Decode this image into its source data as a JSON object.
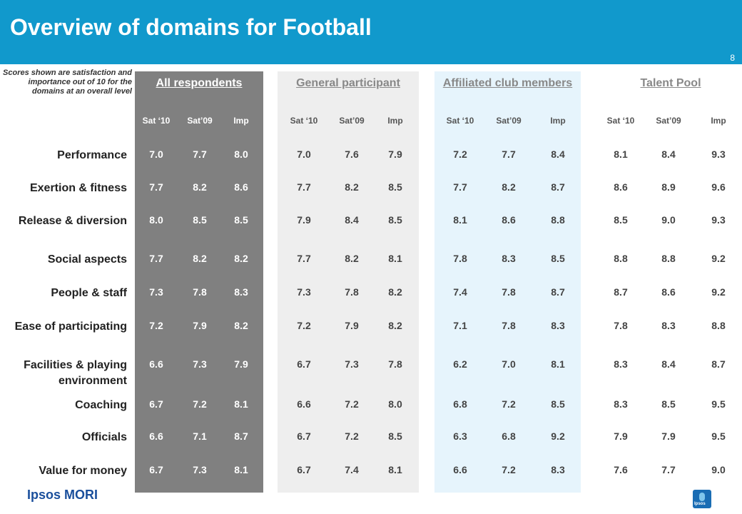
{
  "title": "Overview of domains for Football",
  "page_number": "8",
  "note": "Scores shown are satisfaction and importance out of 10 for the domains at an overall level",
  "logo": "Ipsos MORI",
  "badge_text": "Ipsos",
  "colors": {
    "header": "#1199cc",
    "all_panel": "#808080",
    "general_panel": "#eeeeee",
    "affiliated_panel": "#e6f4fc",
    "talent_panel": "#ffffff"
  },
  "chart_data": {
    "type": "table",
    "columns": [
      "Sat ‘10",
      "Sat’09",
      "Imp"
    ],
    "rows": [
      "Performance",
      "Exertion & fitness",
      "Release & diversion",
      "Social aspects",
      "People & staff",
      "Ease of participating",
      "Facilities & playing environment",
      "Coaching",
      "Officials",
      "Value for money"
    ],
    "groups": [
      {
        "name": "All respondents",
        "values": [
          [
            "7.0",
            "7.7",
            "8.0"
          ],
          [
            "7.7",
            "8.2",
            "8.6"
          ],
          [
            "8.0",
            "8.5",
            "8.5"
          ],
          [
            "7.7",
            "8.2",
            "8.2"
          ],
          [
            "7.3",
            "7.8",
            "8.3"
          ],
          [
            "7.2",
            "7.9",
            "8.2"
          ],
          [
            "6.6",
            "7.3",
            "7.9"
          ],
          [
            "6.7",
            "7.2",
            "8.1"
          ],
          [
            "6.6",
            "7.1",
            "8.7"
          ],
          [
            "6.7",
            "7.3",
            "8.1"
          ]
        ]
      },
      {
        "name": "General participant",
        "values": [
          [
            "7.0",
            "7.6",
            "7.9"
          ],
          [
            "7.7",
            "8.2",
            "8.5"
          ],
          [
            "7.9",
            "8.4",
            "8.5"
          ],
          [
            "7.7",
            "8.2",
            "8.1"
          ],
          [
            "7.3",
            "7.8",
            "8.2"
          ],
          [
            "7.2",
            "7.9",
            "8.2"
          ],
          [
            "6.7",
            "7.3",
            "7.8"
          ],
          [
            "6.6",
            "7.2",
            "8.0"
          ],
          [
            "6.7",
            "7.2",
            "8.5"
          ],
          [
            "6.7",
            "7.4",
            "8.1"
          ]
        ]
      },
      {
        "name": "Affiliated club members",
        "values": [
          [
            "7.2",
            "7.7",
            "8.4"
          ],
          [
            "7.7",
            "8.2",
            "8.7"
          ],
          [
            "8.1",
            "8.6",
            "8.8"
          ],
          [
            "7.8",
            "8.3",
            "8.5"
          ],
          [
            "7.4",
            "7.8",
            "8.7"
          ],
          [
            "7.1",
            "7.8",
            "8.3"
          ],
          [
            "6.2",
            "7.0",
            "8.1"
          ],
          [
            "6.8",
            "7.2",
            "8.5"
          ],
          [
            "6.3",
            "6.8",
            "9.2"
          ],
          [
            "6.6",
            "7.2",
            "8.3"
          ]
        ]
      },
      {
        "name": "Talent Pool",
        "values": [
          [
            "8.1",
            "8.4",
            "9.3"
          ],
          [
            "8.6",
            "8.9",
            "9.6"
          ],
          [
            "8.5",
            "9.0",
            "9.3"
          ],
          [
            "8.8",
            "8.8",
            "9.2"
          ],
          [
            "8.7",
            "8.6",
            "9.2"
          ],
          [
            "7.8",
            "8.3",
            "8.8"
          ],
          [
            "8.3",
            "8.4",
            "8.7"
          ],
          [
            "8.3",
            "8.5",
            "9.5"
          ],
          [
            "7.9",
            "7.9",
            "9.5"
          ],
          [
            "7.6",
            "7.7",
            "9.0"
          ]
        ]
      }
    ]
  }
}
